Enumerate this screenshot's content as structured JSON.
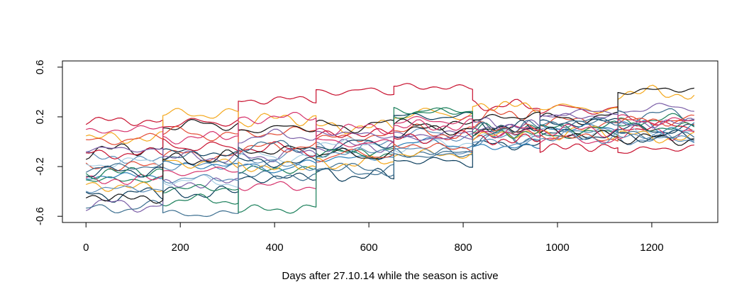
{
  "chart_data": {
    "type": "line",
    "title": "",
    "xlabel": "Days after 27.10.14 while the season is active",
    "ylabel": "",
    "xlim": [
      -50,
      1340
    ],
    "ylim": [
      -0.65,
      0.65
    ],
    "x_ticks": [
      0,
      200,
      400,
      600,
      800,
      1000,
      1200
    ],
    "y_ticks": [
      -0.6,
      -0.2,
      0.2,
      0.6
    ],
    "x_tick_labels": [
      "0",
      "200",
      "400",
      "600",
      "800",
      "1000",
      "1200"
    ],
    "y_tick_labels": [
      "-0.6",
      "-0.2",
      "0.2",
      "0.6"
    ],
    "grid": false,
    "season_breaks": [
      163,
      323,
      488,
      653,
      820,
      963,
      1128
    ],
    "x_end": 1290,
    "colors": [
      "#0b3d5c",
      "#c8102e",
      "#f4a81d",
      "#1a7f5a",
      "#5b8db8",
      "#e34a33",
      "#7b5ea7",
      "#a6cee3",
      "#111111",
      "#2c7fb8",
      "#d6336c",
      "#3b6e8f"
    ],
    "series": [
      {
        "color": "#0b3d5c",
        "values": [
          -0.43,
          -0.42,
          -0.3,
          -0.26,
          -0.14,
          -0.02,
          0.14,
          0.1
        ]
      },
      {
        "color": "#c8102e",
        "values": [
          0.17,
          0.14,
          0.33,
          0.41,
          0.45,
          0.3,
          0.26,
          0.12
        ]
      },
      {
        "color": "#f4a81d",
        "values": [
          0.03,
          0.22,
          0.17,
          0.12,
          0.22,
          0.3,
          0.28,
          0.4
        ]
      },
      {
        "color": "#1a7f5a",
        "values": [
          -0.31,
          -0.47,
          -0.23,
          -0.08,
          0.25,
          0.1,
          0.05,
          0.16
        ]
      },
      {
        "color": "#5b8db8",
        "values": [
          -0.12,
          -0.2,
          -0.14,
          -0.06,
          0.07,
          0.02,
          0.1,
          0.02
        ]
      },
      {
        "color": "#e34a33",
        "values": [
          -0.2,
          -0.1,
          0.06,
          0.02,
          0.09,
          0.2,
          0.17,
          0.18
        ]
      },
      {
        "color": "#7b5ea7",
        "values": [
          -0.5,
          -0.35,
          -0.12,
          -0.04,
          0.05,
          0.12,
          0.2,
          0.26
        ]
      },
      {
        "color": "#a6cee3",
        "values": [
          -0.18,
          -0.3,
          -0.1,
          0.0,
          -0.04,
          0.06,
          0.08,
          0.1
        ]
      },
      {
        "color": "#111111",
        "values": [
          -0.08,
          0.13,
          0.1,
          0.12,
          0.14,
          0.08,
          0.18,
          0.4
        ]
      },
      {
        "color": "#2c7fb8",
        "values": [
          -0.28,
          -0.18,
          -0.22,
          -0.14,
          0.0,
          -0.04,
          0.12,
          0.14
        ]
      },
      {
        "color": "#d6336c",
        "values": [
          -0.32,
          -0.25,
          -0.35,
          0.1,
          0.16,
          0.09,
          0.02,
          0.08
        ]
      },
      {
        "color": "#3b6e8f",
        "values": [
          -0.55,
          -0.58,
          -0.26,
          -0.22,
          -0.08,
          0.03,
          0.14,
          0.23
        ]
      },
      {
        "color": "#0b3d5c",
        "values": [
          -0.25,
          -0.07,
          -0.16,
          -0.03,
          0.2,
          0.14,
          0.06,
          0.05
        ]
      },
      {
        "color": "#c8102e",
        "values": [
          -0.1,
          -0.02,
          -0.04,
          0.05,
          0.02,
          0.01,
          -0.05,
          -0.08
        ]
      },
      {
        "color": "#f4a81d",
        "values": [
          -0.35,
          -0.16,
          -0.2,
          -0.18,
          -0.1,
          0.04,
          0.08,
          0.06
        ]
      },
      {
        "color": "#1a7f5a",
        "values": [
          -0.26,
          -0.38,
          -0.55,
          -0.1,
          0.22,
          0.06,
          0.1,
          0.12
        ]
      },
      {
        "color": "#111111",
        "values": [
          -0.44,
          -0.15,
          -0.08,
          -0.1,
          0.08,
          0.18,
          0.08,
          0.03
        ]
      },
      {
        "color": "#e34a33",
        "values": [
          0.0,
          0.08,
          -0.06,
          -0.12,
          -0.02,
          0.12,
          0.05,
          0.16
        ]
      },
      {
        "color": "#5b8db8",
        "values": [
          -0.38,
          -0.3,
          -0.18,
          -0.1,
          -0.06,
          -0.02,
          0.03,
          0.06
        ]
      },
      {
        "color": "#7b5ea7",
        "values": [
          -0.06,
          -0.12,
          0.04,
          0.08,
          0.03,
          0.16,
          0.22,
          0.14
        ]
      },
      {
        "color": "#d6336c",
        "values": [
          0.08,
          0.02,
          0.18,
          0.0,
          0.12,
          0.07,
          0.1,
          0.18
        ]
      },
      {
        "color": "#3b6e8f",
        "values": [
          -0.22,
          -0.12,
          -0.02,
          -0.2,
          -0.12,
          0.1,
          0.16,
          0.06
        ]
      }
    ]
  }
}
